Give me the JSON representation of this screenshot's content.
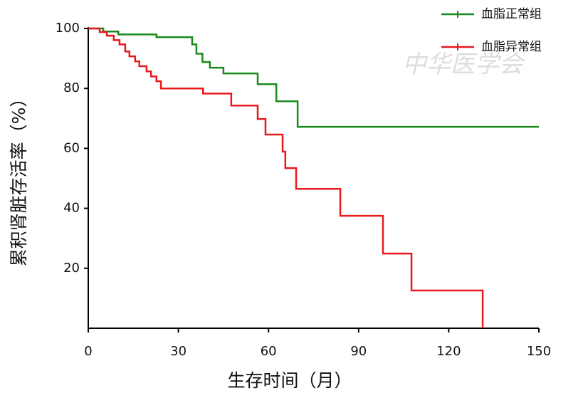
{
  "chart_data": {
    "type": "step",
    "xlabel": "生存时间（月）",
    "ylabel": "累积肾脏存活率（%）",
    "watermark": "中华医学会",
    "xlim": [
      0,
      150
    ],
    "xticks": [
      0,
      30,
      60,
      90,
      120,
      150
    ],
    "ylim": [
      0,
      100
    ],
    "yticks": [
      20,
      40,
      60,
      80,
      100
    ],
    "legend": "top-right",
    "series": [
      {
        "name": "血脂正常组",
        "color": "#1a8a1a",
        "x": [
          0,
          5,
          10,
          22.7,
          34.6,
          36,
          38,
          40.5,
          45,
          56.4,
          62.6,
          69.7,
          150
        ],
        "values": [
          100,
          99,
          98,
          97.1,
          94.7,
          91.6,
          88.8,
          86.9,
          85,
          81.4,
          75.7,
          67.2,
          67.2
        ]
      },
      {
        "name": "血脂异常组",
        "color": "#e8191b",
        "x": [
          0,
          3.8,
          6.2,
          8.5,
          10.4,
          12.3,
          13.7,
          15.6,
          17,
          19.4,
          20.9,
          22.7,
          24.2,
          38.2,
          47.6,
          56.4,
          59,
          64.7,
          65.6,
          69.2,
          83.9,
          98.1,
          107.6,
          131.3
        ],
        "values": [
          100,
          98.8,
          97.6,
          96.1,
          94.7,
          92.3,
          90.7,
          89,
          87.4,
          85.7,
          84,
          82.4,
          80,
          78.3,
          74.3,
          69.8,
          64.6,
          58.9,
          53.4,
          46.5,
          37.5,
          24.9,
          12.6,
          0
        ]
      }
    ]
  }
}
